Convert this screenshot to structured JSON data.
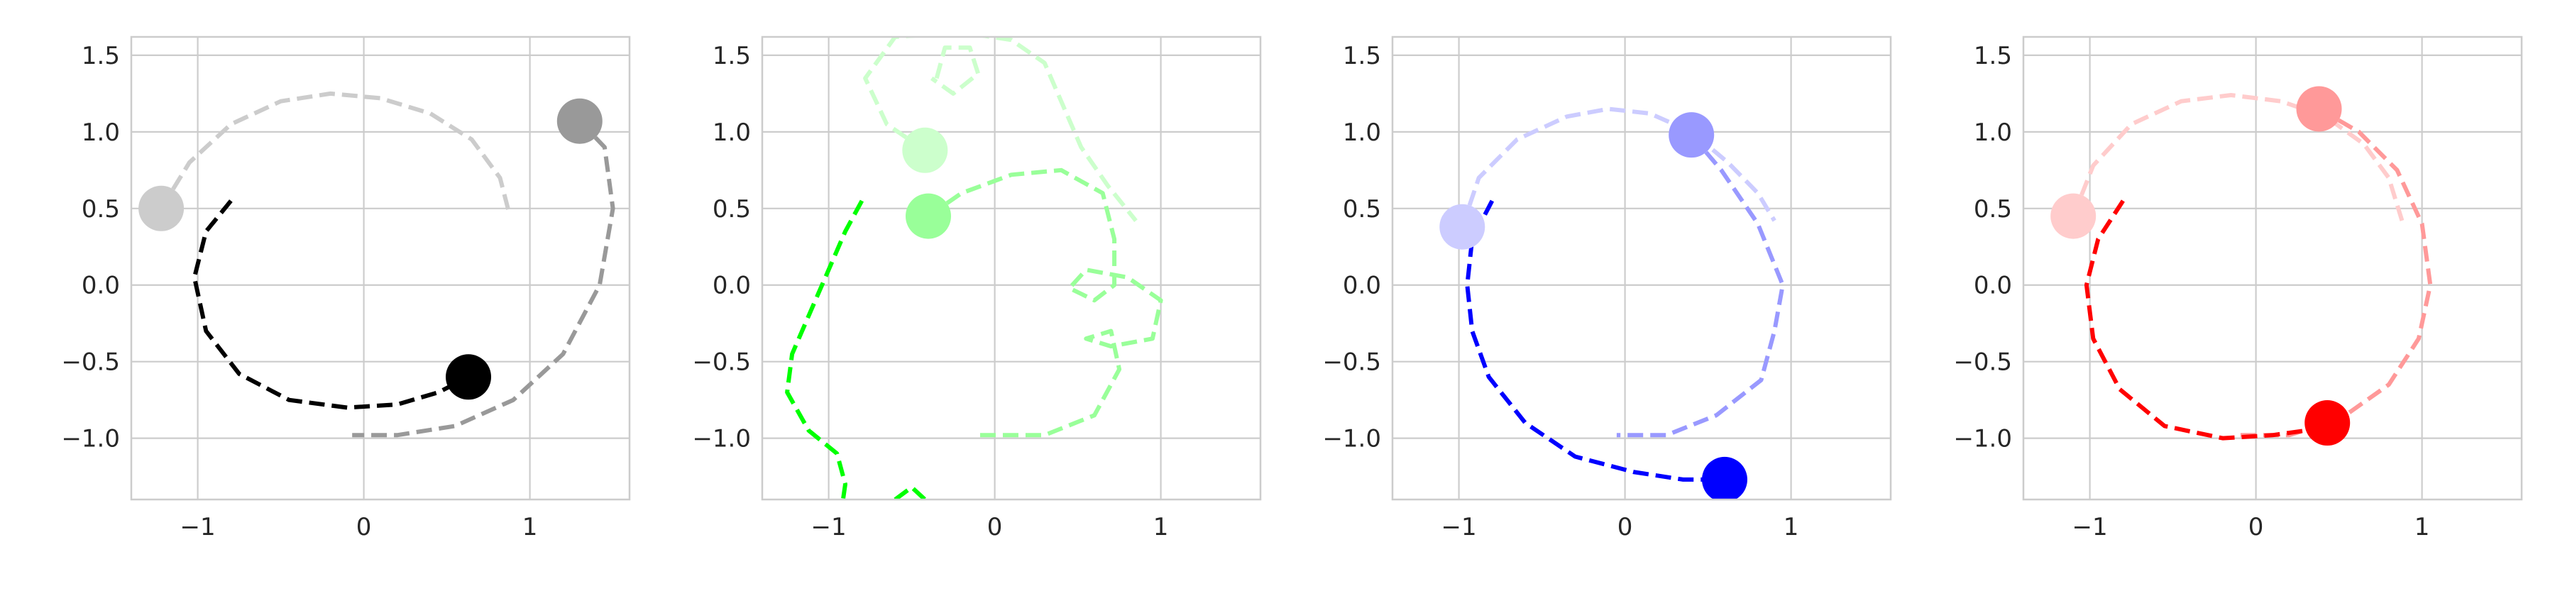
{
  "chart_data": [
    {
      "type": "line",
      "xlim": [
        -1.4,
        1.6
      ],
      "ylim": [
        -1.4,
        1.62
      ],
      "xticks": [
        -1,
        0,
        1
      ],
      "xtick_labels": [
        "−1",
        "0",
        "1"
      ],
      "yticks": [
        -1.0,
        -0.5,
        0.0,
        0.5,
        1.0,
        1.5
      ],
      "ytick_labels": [
        "−1.0",
        "−0.5",
        "0.0",
        "0.5",
        "1.0",
        "1.5"
      ],
      "grid": true,
      "series": [
        {
          "color": "#cccccc",
          "dashed": true,
          "points": [
            [
              -1.22,
              0.5
            ],
            [
              -1.05,
              0.8
            ],
            [
              -0.8,
              1.05
            ],
            [
              -0.5,
              1.2
            ],
            [
              -0.2,
              1.25
            ],
            [
              0.1,
              1.22
            ],
            [
              0.4,
              1.12
            ],
            [
              0.65,
              0.95
            ],
            [
              0.82,
              0.7
            ],
            [
              0.88,
              0.45
            ]
          ],
          "marker": [
            -1.22,
            0.5
          ]
        },
        {
          "color": "#999999",
          "dashed": true,
          "points": [
            [
              1.3,
              1.07
            ],
            [
              1.45,
              0.9
            ],
            [
              1.5,
              0.5
            ],
            [
              1.42,
              0.0
            ],
            [
              1.2,
              -0.45
            ],
            [
              0.9,
              -0.75
            ],
            [
              0.55,
              -0.92
            ],
            [
              0.2,
              -0.98
            ],
            [
              -0.07,
              -0.98
            ]
          ],
          "marker": [
            1.3,
            1.07
          ]
        },
        {
          "color": "#000000",
          "dashed": true,
          "points": [
            [
              -0.8,
              0.55
            ],
            [
              -0.95,
              0.35
            ],
            [
              -1.02,
              0.05
            ],
            [
              -0.95,
              -0.3
            ],
            [
              -0.75,
              -0.58
            ],
            [
              -0.45,
              -0.75
            ],
            [
              -0.1,
              -0.8
            ],
            [
              0.2,
              -0.78
            ],
            [
              0.45,
              -0.7
            ],
            [
              0.63,
              -0.6
            ]
          ],
          "marker": [
            0.63,
            -0.6
          ]
        }
      ]
    },
    {
      "type": "line",
      "xlim": [
        -1.4,
        1.6
      ],
      "ylim": [
        -1.4,
        1.62
      ],
      "xticks": [
        -1,
        0,
        1
      ],
      "xtick_labels": [
        "−1",
        "0",
        "1"
      ],
      "yticks": [
        -1.0,
        -0.5,
        0.0,
        0.5,
        1.0,
        1.5
      ],
      "ytick_labels": [
        "−1.0",
        "−0.5",
        "0.0",
        "0.5",
        "1.0",
        "1.5"
      ],
      "grid": true,
      "series": [
        {
          "color": "#ccffcc",
          "dashed": true,
          "points": [
            [
              -0.42,
              0.88
            ],
            [
              -0.65,
              1.05
            ],
            [
              -0.78,
              1.35
            ],
            [
              -0.6,
              1.62
            ],
            [
              -0.2,
              1.65
            ],
            [
              0.1,
              1.6
            ],
            [
              0.3,
              1.45
            ],
            [
              0.4,
              1.2
            ],
            [
              0.52,
              0.9
            ],
            [
              0.68,
              0.65
            ],
            [
              0.85,
              0.42
            ]
          ],
          "marker": [
            -0.42,
            0.88
          ]
        },
        {
          "color": "#ccffcc",
          "dashed": true,
          "points": [
            [
              -0.35,
              1.35
            ],
            [
              -0.3,
              1.55
            ],
            [
              -0.15,
              1.55
            ],
            [
              -0.1,
              1.38
            ],
            [
              -0.25,
              1.25
            ],
            [
              -0.38,
              1.35
            ]
          ],
          "marker": null
        },
        {
          "color": "#99ff99",
          "dashed": true,
          "points": [
            [
              -0.4,
              0.45
            ],
            [
              -0.2,
              0.6
            ],
            [
              0.1,
              0.72
            ],
            [
              0.4,
              0.75
            ],
            [
              0.65,
              0.6
            ],
            [
              0.72,
              0.3
            ],
            [
              0.72,
              0.0
            ],
            [
              0.6,
              -0.1
            ],
            [
              0.45,
              -0.02
            ],
            [
              0.55,
              0.1
            ],
            [
              0.8,
              0.05
            ],
            [
              1.0,
              -0.1
            ],
            [
              0.95,
              -0.35
            ],
            [
              0.7,
              -0.4
            ],
            [
              0.55,
              -0.35
            ],
            [
              0.7,
              -0.3
            ],
            [
              0.75,
              -0.55
            ],
            [
              0.6,
              -0.85
            ],
            [
              0.3,
              -0.98
            ],
            [
              -0.1,
              -0.98
            ]
          ],
          "marker": [
            -0.4,
            0.45
          ]
        },
        {
          "color": "#00ff00",
          "dashed": true,
          "points": [
            [
              -0.8,
              0.55
            ],
            [
              -0.9,
              0.35
            ],
            [
              -1.02,
              0.05
            ],
            [
              -1.12,
              -0.2
            ],
            [
              -1.22,
              -0.45
            ],
            [
              -1.25,
              -0.7
            ],
            [
              -1.12,
              -0.95
            ],
            [
              -0.95,
              -1.1
            ],
            [
              -0.9,
              -1.3
            ],
            [
              -0.92,
              -1.45
            ]
          ],
          "marker": null
        },
        {
          "color": "#00ff00",
          "dashed": true,
          "points": [
            [
              -0.6,
              -1.4
            ],
            [
              -0.5,
              -1.32
            ],
            [
              -0.42,
              -1.4
            ]
          ],
          "marker": null
        }
      ]
    },
    {
      "type": "line",
      "xlim": [
        -1.4,
        1.6
      ],
      "ylim": [
        -1.4,
        1.62
      ],
      "xticks": [
        -1,
        0,
        1
      ],
      "xtick_labels": [
        "−1",
        "0",
        "1"
      ],
      "yticks": [
        -1.0,
        -0.5,
        0.0,
        0.5,
        1.0,
        1.5
      ],
      "ytick_labels": [
        "−1.0",
        "−0.5",
        "0.0",
        "0.5",
        "1.0",
        "1.5"
      ],
      "grid": true,
      "series": [
        {
          "color": "#ccccff",
          "dashed": true,
          "points": [
            [
              -0.98,
              0.38
            ],
            [
              -0.88,
              0.7
            ],
            [
              -0.65,
              0.95
            ],
            [
              -0.35,
              1.1
            ],
            [
              -0.1,
              1.15
            ],
            [
              0.15,
              1.12
            ],
            [
              0.4,
              1.0
            ],
            [
              0.62,
              0.8
            ],
            [
              0.8,
              0.6
            ],
            [
              0.9,
              0.42
            ]
          ],
          "marker": [
            -0.98,
            0.38
          ]
        },
        {
          "color": "#9999ff",
          "dashed": true,
          "points": [
            [
              0.4,
              0.98
            ],
            [
              0.58,
              0.75
            ],
            [
              0.8,
              0.4
            ],
            [
              0.95,
              0.0
            ],
            [
              0.9,
              -0.3
            ],
            [
              0.82,
              -0.62
            ],
            [
              0.55,
              -0.85
            ],
            [
              0.25,
              -0.98
            ],
            [
              -0.05,
              -0.98
            ]
          ],
          "marker": [
            0.4,
            0.98
          ]
        },
        {
          "color": "#0000ff",
          "dashed": true,
          "points": [
            [
              -0.8,
              0.55
            ],
            [
              -0.92,
              0.3
            ],
            [
              -0.95,
              0.0
            ],
            [
              -0.92,
              -0.3
            ],
            [
              -0.82,
              -0.6
            ],
            [
              -0.6,
              -0.9
            ],
            [
              -0.3,
              -1.12
            ],
            [
              0.05,
              -1.22
            ],
            [
              0.35,
              -1.27
            ],
            [
              0.6,
              -1.27
            ]
          ],
          "marker": [
            0.6,
            -1.27
          ]
        }
      ]
    },
    {
      "type": "line",
      "xlim": [
        -1.4,
        1.6
      ],
      "ylim": [
        -1.4,
        1.62
      ],
      "xticks": [
        -1,
        0,
        1
      ],
      "xtick_labels": [
        "−1",
        "0",
        "1"
      ],
      "yticks": [
        -1.0,
        -0.5,
        0.0,
        0.5,
        1.0,
        1.5
      ],
      "ytick_labels": [
        "−1.0",
        "−0.5",
        "0.0",
        "0.5",
        "1.0",
        "1.5"
      ],
      "grid": true,
      "series": [
        {
          "color": "#ffcccc",
          "dashed": true,
          "points": [
            [
              -1.1,
              0.45
            ],
            [
              -0.98,
              0.78
            ],
            [
              -0.75,
              1.05
            ],
            [
              -0.45,
              1.2
            ],
            [
              -0.15,
              1.24
            ],
            [
              0.15,
              1.2
            ],
            [
              0.42,
              1.1
            ],
            [
              0.65,
              0.92
            ],
            [
              0.8,
              0.7
            ],
            [
              0.88,
              0.42
            ]
          ],
          "marker": [
            -1.1,
            0.45
          ]
        },
        {
          "color": "#ff9999",
          "dashed": true,
          "points": [
            [
              0.38,
              1.15
            ],
            [
              0.62,
              1.0
            ],
            [
              0.85,
              0.75
            ],
            [
              1.0,
              0.4
            ],
            [
              1.05,
              0.0
            ],
            [
              0.98,
              -0.35
            ],
            [
              0.8,
              -0.65
            ],
            [
              0.5,
              -0.88
            ],
            [
              0.2,
              -0.98
            ],
            [
              -0.1,
              -0.98
            ]
          ],
          "marker": [
            0.38,
            1.15
          ]
        },
        {
          "color": "#ff0000",
          "dashed": true,
          "points": [
            [
              -0.8,
              0.55
            ],
            [
              -0.95,
              0.3
            ],
            [
              -1.02,
              0.0
            ],
            [
              -0.98,
              -0.35
            ],
            [
              -0.82,
              -0.68
            ],
            [
              -0.55,
              -0.92
            ],
            [
              -0.2,
              -1.0
            ],
            [
              0.1,
              -0.98
            ],
            [
              0.3,
              -0.95
            ],
            [
              0.43,
              -0.9
            ]
          ],
          "marker": [
            0.43,
            -0.9
          ]
        }
      ]
    }
  ]
}
